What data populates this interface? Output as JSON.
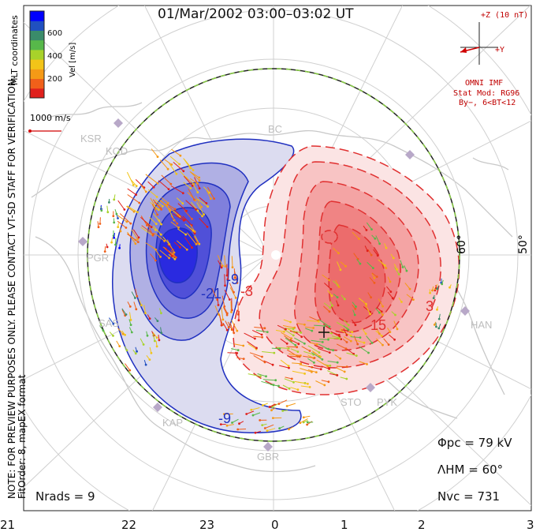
{
  "title": "01/Mar/2002 03:00–03:02 UT",
  "colorbar": {
    "label": "Vel [m/s]",
    "ticks": [
      "600",
      "400",
      "200"
    ],
    "colors": [
      "#0000ff",
      "#2050c0",
      "#3a8c6a",
      "#57b84a",
      "#a8d22a",
      "#f2c418",
      "#f59a16",
      "#f0601a",
      "#e0201c"
    ]
  },
  "side_text": {
    "coords": "MLT coordinates",
    "note": "NOTE: FOR PREVIEW PURPOSES ONLY. PLEASE CONTACT VT-SD STAFF FOR VERIFICATION.",
    "fit": "FitOrder: 8, mapEX format"
  },
  "scale_label": "1000 m/s",
  "imf": {
    "z_label": "+Z (10 nT)",
    "y_label": "+Y",
    "source": "OMNI IMF",
    "model": "Stat Mod: RG96",
    "condition": "By−, 6<BT<12"
  },
  "lat_labels": [
    "60°",
    "50°"
  ],
  "stations": [
    "KSR",
    "KOD",
    "PGR",
    "SAS",
    "KAP",
    "GBR",
    "STO",
    "PYK",
    "HAN",
    "BC"
  ],
  "contour_labels": [
    "-21",
    "-9",
    "-3",
    "-9",
    "3",
    "15"
  ],
  "stats": {
    "phi_pc": "Φpc = 79 kV",
    "lambda_hm": "ΛHM = 60°",
    "n_vc": "Nvc = 731",
    "n_rads": "Nrads = 9"
  },
  "mlt_hours": [
    "21",
    "22",
    "23",
    "0",
    "1",
    "2",
    "3"
  ],
  "accent_colors": {
    "positive": "#e03030",
    "negative": "#2030c0",
    "boundary_dash": "#88cc44"
  }
}
